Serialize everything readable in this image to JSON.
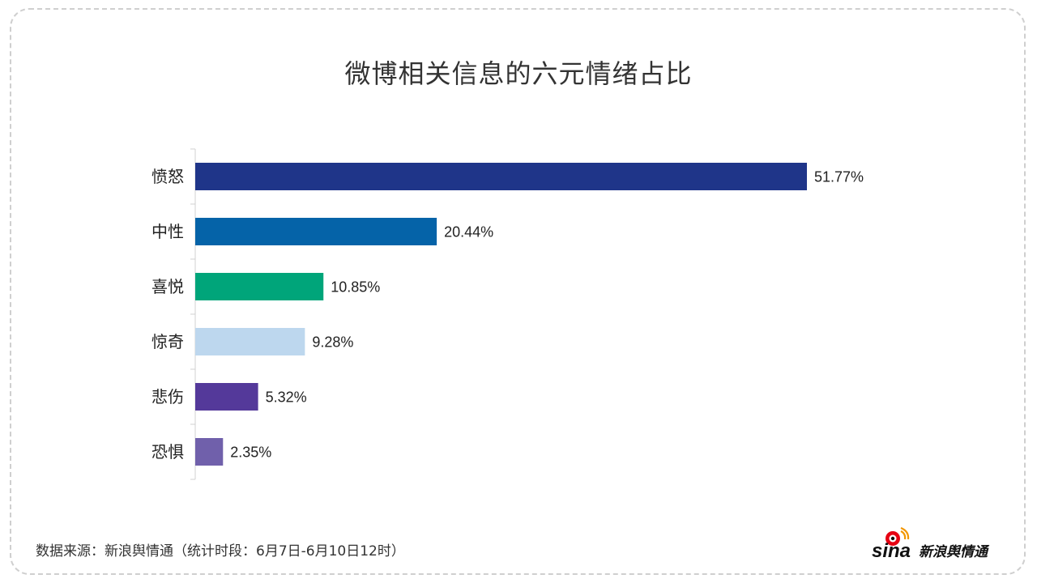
{
  "title": "微博相关信息的六元情绪占比",
  "source": "数据来源：新浪舆情通（统计时段：6月7日-6月10日12时）",
  "logo": {
    "text": "新浪舆情通",
    "brand": "sina"
  },
  "chart_data": {
    "type": "bar",
    "orientation": "horizontal",
    "title": "微博相关信息的六元情绪占比",
    "categories": [
      "愤怒",
      "中性",
      "喜悦",
      "惊奇",
      "悲伤",
      "恐惧"
    ],
    "values": [
      51.77,
      20.44,
      10.85,
      9.28,
      5.32,
      2.35
    ],
    "value_labels": [
      "51.77%",
      "20.44%",
      "10.85%",
      "9.28%",
      "5.32%",
      "2.35%"
    ],
    "colors": [
      "#1f3589",
      "#0563a8",
      "#00a57a",
      "#bdd7ee",
      "#54399a",
      "#7060ab"
    ],
    "xlim": [
      0,
      55
    ],
    "grid": false,
    "legend": "none"
  }
}
